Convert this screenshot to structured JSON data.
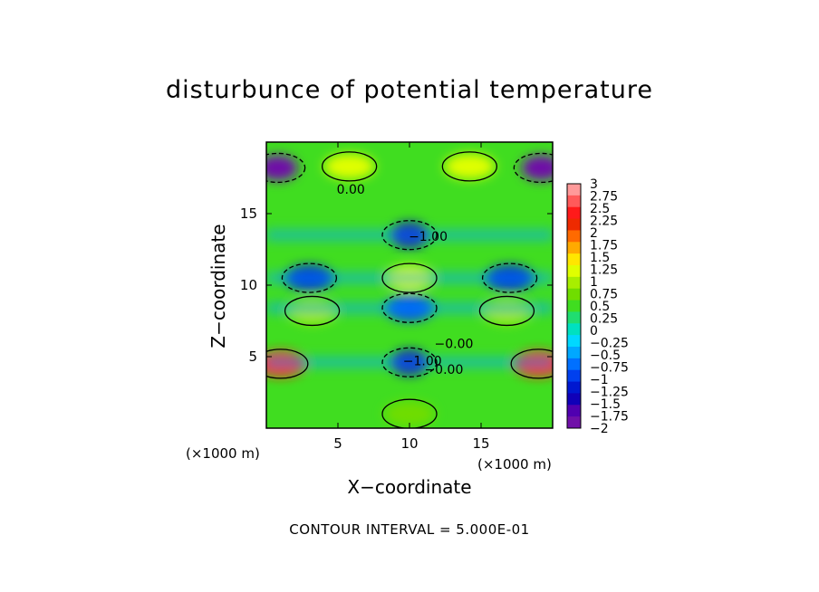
{
  "title": "disturbunce of potential temperature",
  "footer": "CONTOUR INTERVAL = 5.000E-01",
  "chart_data": {
    "type": "heatmap",
    "title": "disturbunce of potential temperature",
    "xlabel": "X−coordinate",
    "ylabel": "Z−coordinate",
    "x_unit_label_left": "(×1000 m)",
    "x_unit_label_right": "(×1000 m)",
    "xlim": [
      0,
      20
    ],
    "ylim": [
      0,
      20
    ],
    "x_ticks": [
      5,
      10,
      15
    ],
    "y_ticks": [
      5,
      10,
      15
    ],
    "contour_interval": 0.5,
    "contour_labels": [
      {
        "text": "0.00",
        "x": 5.9,
        "z": 16.4
      },
      {
        "text": "−1.00",
        "x": 11.3,
        "z": 13.1
      },
      {
        "text": "−0.00",
        "x": 13.1,
        "z": 5.6
      },
      {
        "text": "−1.00",
        "x": 10.9,
        "z": 4.4
      },
      {
        "text": "−0.00",
        "x": 12.4,
        "z": 3.8
      }
    ],
    "colorbar": {
      "levels": [
        "3",
        "2.75",
        "2.5",
        "2.25",
        "2",
        "1.75",
        "1.5",
        "1.25",
        "1",
        "0.75",
        "0.5",
        "0.25",
        "0",
        "−0.25",
        "−0.5",
        "−0.75",
        "−1",
        "−1.25",
        "−1.5",
        "−1.75",
        "−2"
      ],
      "colors": [
        "#ff9a9a",
        "#ff5a5a",
        "#ff1a1a",
        "#ee2a00",
        "#ff6a00",
        "#ffaa00",
        "#ffe600",
        "#e0ff00",
        "#a8ee00",
        "#70dd00",
        "#40dd20",
        "#20dd70",
        "#00e0c0",
        "#00d8ff",
        "#00a8ff",
        "#0070ff",
        "#0040ee",
        "#0018d0",
        "#1000b8",
        "#5000b0",
        "#7010a8"
      ]
    },
    "features": [
      {
        "x": 0.8,
        "z": 18.2,
        "value": -2.0
      },
      {
        "x": 19.2,
        "z": 18.2,
        "value": -2.0
      },
      {
        "x": 5.8,
        "z": 18.3,
        "value": 1.3
      },
      {
        "x": 14.2,
        "z": 18.3,
        "value": 1.3
      },
      {
        "x": 10.0,
        "z": 13.5,
        "value": -1.6
      },
      {
        "x": 10.0,
        "z": 10.5,
        "value": 1.2
      },
      {
        "x": 3.0,
        "z": 10.5,
        "value": -1.3
      },
      {
        "x": 17.0,
        "z": 10.5,
        "value": -1.3
      },
      {
        "x": 3.2,
        "z": 8.2,
        "value": 1.0
      },
      {
        "x": 16.8,
        "z": 8.2,
        "value": 1.0
      },
      {
        "x": 10.0,
        "z": 8.4,
        "value": -1.1
      },
      {
        "x": 10.0,
        "z": 4.6,
        "value": -1.5
      },
      {
        "x": 1.0,
        "z": 4.5,
        "value": 2.5
      },
      {
        "x": 19.0,
        "z": 4.5,
        "value": 2.5
      },
      {
        "x": 10.0,
        "z": 1.0,
        "value": 0.8
      }
    ]
  }
}
